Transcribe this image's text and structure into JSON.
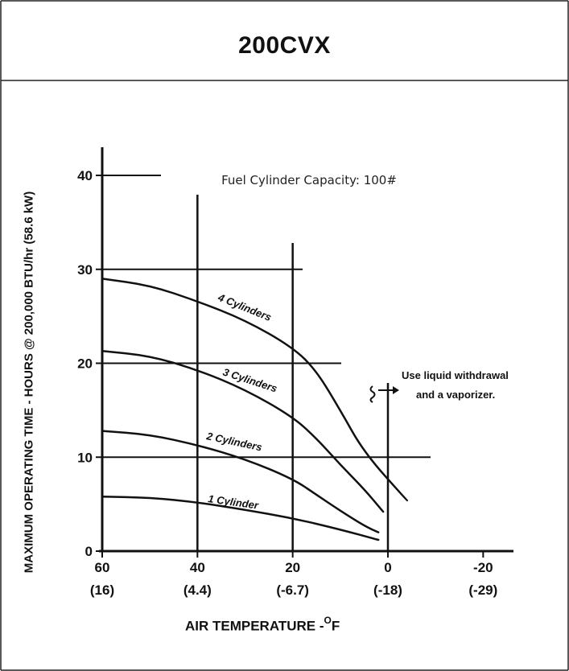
{
  "title": "200CVX",
  "chart_data": {
    "type": "line",
    "title": "200CVX",
    "subtitle": "Fuel Cylinder Capacity: 100#",
    "xlabel": "AIR TEMPERATURE -",
    "xlabel_unit": "O",
    "xlabel_suffix": "F",
    "ylabel": "MAXIMUM OPERATING TIME - HOURS @ 200,000 BTU/hr (58.6 kW)",
    "x_ticks": [
      {
        "value": 60,
        "label": "60",
        "sublabel": "(16)"
      },
      {
        "value": 40,
        "label": "40",
        "sublabel": "(4.4)"
      },
      {
        "value": 20,
        "label": "20",
        "sublabel": "(-6.7)"
      },
      {
        "value": 0,
        "label": "0",
        "sublabel": "(-18)"
      },
      {
        "value": -20,
        "label": "-20",
        "sublabel": "(-29)"
      }
    ],
    "y_ticks": [
      {
        "value": 0,
        "label": "0"
      },
      {
        "value": 10,
        "label": "10"
      },
      {
        "value": 20,
        "label": "20"
      },
      {
        "value": 30,
        "label": "30"
      },
      {
        "value": 40,
        "label": "40"
      }
    ],
    "xlim": [
      60,
      -20
    ],
    "ylim": [
      0,
      40
    ],
    "x_reversed": true,
    "series": [
      {
        "name": "1 Cylinder",
        "x": [
          60,
          50,
          40,
          30,
          20,
          10,
          2
        ],
        "y": [
          5.8,
          5.7,
          5.2,
          4.4,
          3.5,
          2.3,
          1.2
        ]
      },
      {
        "name": "2 Cylinders",
        "x": [
          60,
          50,
          40,
          30,
          20,
          15,
          10,
          5,
          2
        ],
        "y": [
          12.8,
          12.4,
          11.3,
          9.8,
          7.7,
          6.0,
          4.3,
          2.7,
          2.0
        ]
      },
      {
        "name": "3 Cylinders",
        "x": [
          60,
          50,
          40,
          30,
          20,
          15,
          10,
          5,
          1
        ],
        "y": [
          21.3,
          20.8,
          19.3,
          17.2,
          14.3,
          12.0,
          9.2,
          6.6,
          4.2
        ]
      },
      {
        "name": "4 Cylinders",
        "x": [
          60,
          50,
          40,
          30,
          20,
          15,
          10,
          5,
          -4
        ],
        "y": [
          29.0,
          28.3,
          26.6,
          24.6,
          21.7,
          19.2,
          15.0,
          10.5,
          5.4
        ]
      }
    ],
    "annotations": [
      {
        "text": "Use liquid withdrawal"
      },
      {
        "text": "and a vaporizer."
      }
    ],
    "grid": "partial"
  }
}
